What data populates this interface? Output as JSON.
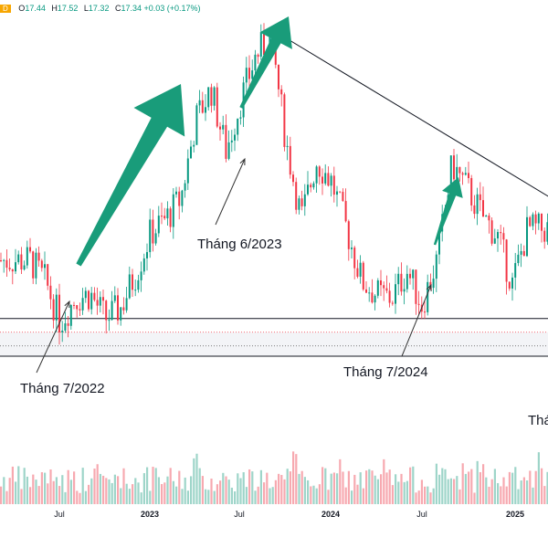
{
  "legend": {
    "badge": "D",
    "open_label": "O",
    "open": "17.44",
    "high_label": "H",
    "high": "17.52",
    "low_label": "L",
    "low": "17.32",
    "close_label": "C",
    "close": "17.34",
    "change": "+0.03 (+0.17%)"
  },
  "annotations": [
    "Tháng 7/2022",
    "Tháng 6/2023",
    "Tháng 7/2024",
    "Thá"
  ],
  "colors": {
    "up": "#089981",
    "down": "#f23645",
    "arrow": "#199c7a",
    "line": "#131722",
    "vol_up": "#9ed5c9",
    "vol_down": "#f7a9b0"
  },
  "chart_data": {
    "type": "candlestick",
    "x_tick_labels": [
      {
        "label": "Jul",
        "bold": false
      },
      {
        "label": "2023",
        "bold": true
      },
      {
        "label": "Jul",
        "bold": false
      },
      {
        "label": "2024",
        "bold": true
      },
      {
        "label": "Jul",
        "bold": false
      },
      {
        "label": "2025",
        "bold": true
      }
    ],
    "price_series": [
      [
        "2022-05",
        24.8
      ],
      [
        "2022-06",
        23.6
      ],
      [
        "2022-07",
        21.2
      ],
      [
        "2022-08",
        22.6
      ],
      [
        "2022-09",
        22.8
      ],
      [
        "2022-10",
        21.4
      ],
      [
        "2022-11",
        22.0
      ],
      [
        "2022-12",
        24.0
      ],
      [
        "2023-01",
        26.4
      ],
      [
        "2023-02",
        27.2
      ],
      [
        "2023-03",
        28.4
      ],
      [
        "2023-04",
        33.0
      ],
      [
        "2023-05",
        34.8
      ],
      [
        "2023-06",
        31.2
      ],
      [
        "2023-07",
        34.2
      ],
      [
        "2023-08",
        36.8
      ],
      [
        "2023-09",
        37.8
      ],
      [
        "2023-10",
        31.6
      ],
      [
        "2023-11",
        27.2
      ],
      [
        "2023-12",
        30.6
      ],
      [
        "2024-01",
        29.4
      ],
      [
        "2024-02",
        26.6
      ],
      [
        "2024-03",
        23.6
      ],
      [
        "2024-04",
        22.8
      ],
      [
        "2024-05",
        22.6
      ],
      [
        "2024-06",
        24.2
      ],
      [
        "2024-07",
        22.2
      ],
      [
        "2024-08",
        24.8
      ],
      [
        "2024-09",
        30.4
      ],
      [
        "2024-10",
        29.0
      ],
      [
        "2024-11",
        27.4
      ],
      [
        "2024-12",
        26.2
      ],
      [
        "2025-01",
        23.4
      ],
      [
        "2025-02",
        26.6
      ]
    ],
    "support_levels": [
      21.4,
      20.6,
      20.4,
      19.8,
      19.2
    ],
    "resistance_trendline": [
      [
        "2023-09",
        38.2
      ],
      [
        "2025-02",
        28.4
      ]
    ],
    "volume_profile": "relative",
    "ylim": [
      8,
      40
    ],
    "grid": false
  }
}
